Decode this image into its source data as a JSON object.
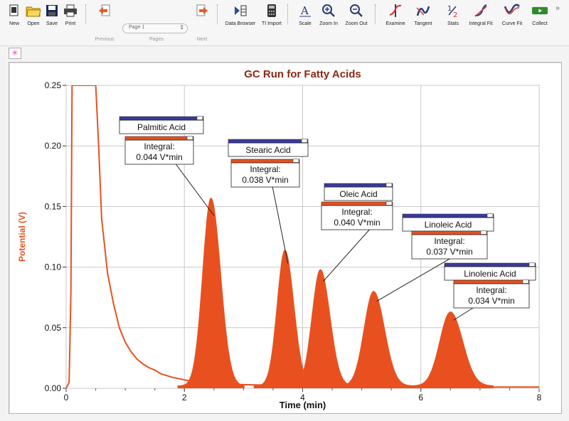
{
  "toolbar": {
    "buttons": [
      {
        "label": "New"
      },
      {
        "label": "Open"
      },
      {
        "label": "Save"
      },
      {
        "label": "Print"
      },
      {
        "label": "Previous"
      },
      {
        "label": "Pages"
      },
      {
        "label": "Next"
      },
      {
        "label": "Data Browser"
      },
      {
        "label": "TI Import"
      },
      {
        "label": "Scale"
      },
      {
        "label": "Zoom In"
      },
      {
        "label": "Zoom Out"
      },
      {
        "label": "Examine"
      },
      {
        "label": "Tangent"
      },
      {
        "label": "Stats"
      },
      {
        "label": "Integral Fit"
      },
      {
        "label": "Curve Fit"
      },
      {
        "label": "Collect"
      }
    ],
    "page_select": "Page 1",
    "more_glyph": "»",
    "accent_color": "#e85a2a"
  },
  "chart_data": {
    "type": "area",
    "title": "GC Run for Fatty Acids",
    "xlabel": "Time (min)",
    "ylabel": "Potential (V)",
    "xlim": [
      0,
      8
    ],
    "ylim": [
      0,
      0.25
    ],
    "x_ticks": [
      "0",
      "2",
      "4",
      "6",
      "8"
    ],
    "y_ticks": [
      "0.00",
      "0.05",
      "0.10",
      "0.15",
      "0.20",
      "0.25"
    ],
    "grid": true,
    "series_color": "#e8511f",
    "baseline_series": {
      "x": [
        0.0,
        0.05,
        0.08,
        0.1,
        0.13,
        0.2,
        0.3,
        0.4,
        0.5,
        0.55,
        0.6,
        0.7,
        0.8,
        0.9,
        1.0,
        1.1,
        1.2,
        1.3,
        1.4,
        1.5,
        1.6,
        1.8,
        2.0,
        2.2,
        2.5,
        3.0,
        4.0,
        5.0,
        6.0,
        7.0,
        8.0
      ],
      "y": [
        0.0,
        0.005,
        0.08,
        0.25,
        0.25,
        0.25,
        0.25,
        0.25,
        0.25,
        0.2,
        0.14,
        0.095,
        0.07,
        0.05,
        0.038,
        0.03,
        0.024,
        0.02,
        0.017,
        0.015,
        0.012,
        0.009,
        0.007,
        0.005,
        0.004,
        0.003,
        0.002,
        0.002,
        0.001,
        0.001,
        0.001
      ]
    },
    "peaks": [
      {
        "name": "Palmitic Acid",
        "integral": "0.044 V*min",
        "time": 2.45,
        "height": 0.155
      },
      {
        "name": "Stearic Acid",
        "integral": "0.038 V*min",
        "time": 3.7,
        "height": 0.112
      },
      {
        "name": "Oleic Acid",
        "integral": "0.040 V*min",
        "time": 4.3,
        "height": 0.096
      },
      {
        "name": "Linoleic  Acid",
        "integral": "0.037 V*min",
        "time": 5.2,
        "height": 0.078
      },
      {
        "name": "Linolenic Acid",
        "integral": "0.034 V*min",
        "time": 6.5,
        "height": 0.061
      }
    ],
    "integral_label": "Integral:"
  }
}
